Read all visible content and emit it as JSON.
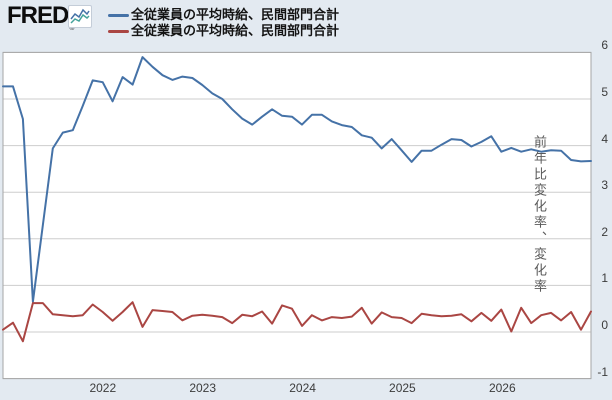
{
  "header": {
    "logo_text": "FRED",
    "registered_mark": "®",
    "legend": [
      {
        "label": "全従業員の平均時給、民間部門合計",
        "color": "#4572a7"
      },
      {
        "label": "全従業員の平均時給、民間部門合計",
        "color": "#aa4643"
      }
    ]
  },
  "colors": {
    "background": "#e3eaf1",
    "plot_background": "#ffffff",
    "gridline": "#cdcdcd",
    "axis_border": "#a6a6a6",
    "tick_text": "#3c3c3c",
    "series_blue": "#4572a7",
    "series_red": "#aa4643"
  },
  "chart_data": {
    "type": "line",
    "ylabel": "前年比変化率、変化率",
    "x_ticks": [
      "2022",
      "2023",
      "2024",
      "2025",
      "2026"
    ],
    "x_range_years": [
      2021.2,
      2026.9
    ],
    "ylim": [
      -1,
      6
    ],
    "y_ticks": [
      6,
      5,
      4,
      3,
      2,
      1,
      0,
      -1
    ],
    "grid": "horizontal",
    "legend_position": "top-left",
    "series": [
      {
        "name": "全従業員の平均時給、民間部門合計",
        "color": "#4572a7",
        "values": [
          5.27,
          5.27,
          4.57,
          0.65,
          2.3,
          3.94,
          4.28,
          4.33,
          4.85,
          5.4,
          5.36,
          4.95,
          5.47,
          5.31,
          5.9,
          5.69,
          5.51,
          5.41,
          5.48,
          5.45,
          5.3,
          5.12,
          5.0,
          4.78,
          4.58,
          4.45,
          4.62,
          4.78,
          4.64,
          4.62,
          4.45,
          4.66,
          4.66,
          4.52,
          4.44,
          4.4,
          4.22,
          4.17,
          3.94,
          4.14,
          3.9,
          3.65,
          3.89,
          3.89,
          4.02,
          4.14,
          4.12,
          3.98,
          4.08,
          4.2,
          3.87,
          3.95,
          3.87,
          3.92,
          3.87,
          3.9,
          3.89,
          3.69,
          3.66,
          3.67
        ]
      },
      {
        "name": "全従業員の平均時給、民間部門合計",
        "color": "#aa4643",
        "values": [
          0.05,
          0.2,
          -0.2,
          0.62,
          0.62,
          0.38,
          0.36,
          0.34,
          0.36,
          0.59,
          0.43,
          0.24,
          0.43,
          0.64,
          0.11,
          0.47,
          0.45,
          0.43,
          0.25,
          0.35,
          0.37,
          0.35,
          0.32,
          0.19,
          0.37,
          0.34,
          0.44,
          0.18,
          0.57,
          0.5,
          0.13,
          0.36,
          0.25,
          0.32,
          0.3,
          0.33,
          0.52,
          0.18,
          0.42,
          0.32,
          0.3,
          0.19,
          0.39,
          0.36,
          0.34,
          0.35,
          0.38,
          0.23,
          0.41,
          0.24,
          0.48,
          0.01,
          0.52,
          0.19,
          0.36,
          0.41,
          0.25,
          0.43,
          0.05,
          0.44
        ]
      }
    ]
  }
}
